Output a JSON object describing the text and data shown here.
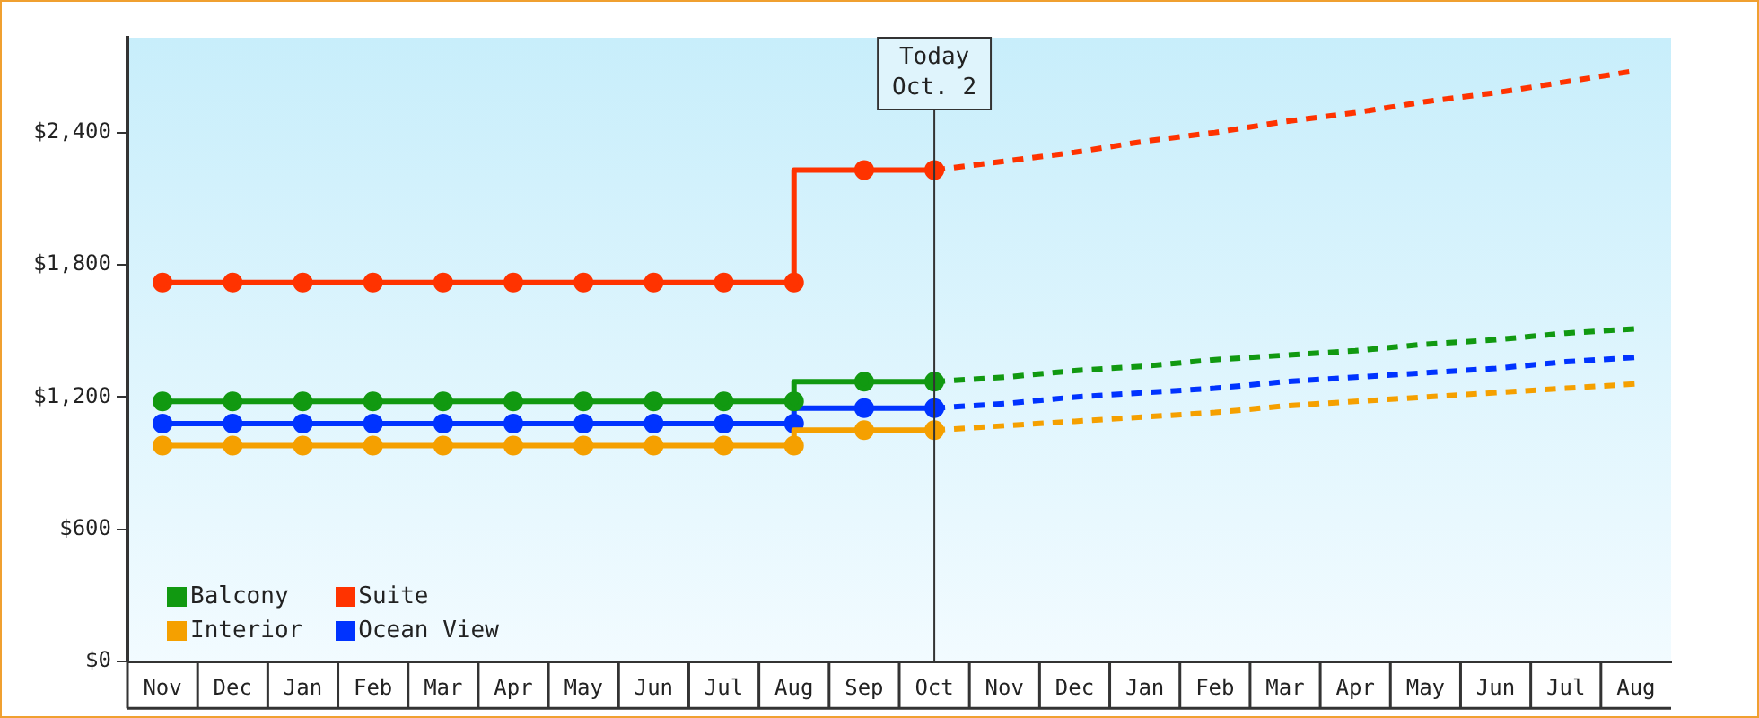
{
  "chart_data": {
    "type": "line",
    "categories": [
      "Nov",
      "Dec",
      "Jan",
      "Feb",
      "Mar",
      "Apr",
      "May",
      "Jun",
      "Jul",
      "Aug",
      "Sep",
      "Oct",
      "Nov",
      "Dec",
      "Jan",
      "Feb",
      "Mar",
      "Apr",
      "May",
      "Jun",
      "Jul",
      "Aug"
    ],
    "ylim": [
      0,
      2830
    ],
    "yticks": [
      {
        "value": 0,
        "label": "$0"
      },
      {
        "value": 600,
        "label": "$600"
      },
      {
        "value": 1200,
        "label": "$1,200"
      },
      {
        "value": 1800,
        "label": "$1,800"
      },
      {
        "value": 2400,
        "label": "$2,400"
      }
    ],
    "grid": false,
    "legend": "bottom left",
    "marker": "circle",
    "line_style": "solid",
    "series": [
      {
        "name": "Balcony",
        "color": "#119911",
        "type": "step",
        "values": [
          1180,
          1180,
          1180,
          1180,
          1180,
          1180,
          1180,
          1180,
          1180,
          1180,
          1270,
          1270,
          null,
          null,
          null,
          null,
          null,
          null,
          null,
          null,
          null,
          null
        ]
      },
      {
        "name": "Suite",
        "color": "#ff3300",
        "type": "step",
        "values": [
          1720,
          1720,
          1720,
          1720,
          1720,
          1720,
          1720,
          1720,
          1720,
          1720,
          2230,
          2230,
          null,
          null,
          null,
          null,
          null,
          null,
          null,
          null,
          null,
          null
        ]
      },
      {
        "name": "Interior",
        "color": "#f5a000",
        "type": "step",
        "values": [
          980,
          980,
          980,
          980,
          980,
          980,
          980,
          980,
          980,
          980,
          1050,
          1050,
          null,
          null,
          null,
          null,
          null,
          null,
          null,
          null,
          null,
          null
        ]
      },
      {
        "name": "Ocean View",
        "color": "#0033ff",
        "type": "step",
        "values": [
          1080,
          1080,
          1080,
          1080,
          1080,
          1080,
          1080,
          1080,
          1080,
          1080,
          1150,
          1150,
          null,
          null,
          null,
          null,
          null,
          null,
          null,
          null,
          null,
          null
        ]
      },
      {
        "color": "#119911",
        "marker": "none",
        "line_style": "dashed",
        "values": [
          null,
          null,
          null,
          null,
          null,
          null,
          null,
          null,
          null,
          null,
          null,
          1270,
          1290,
          1320,
          1340,
          1370,
          1390,
          1410,
          1440,
          1460,
          1490,
          1510
        ]
      },
      {
        "color": "#ff3300",
        "marker": "none",
        "line_style": "dashed",
        "values": [
          null,
          null,
          null,
          null,
          null,
          null,
          null,
          null,
          null,
          null,
          null,
          2230,
          2270,
          2310,
          2360,
          2400,
          2450,
          2490,
          2540,
          2580,
          2630,
          2680
        ]
      },
      {
        "color": "#f5a000",
        "marker": "none",
        "line_style": "dashed",
        "values": [
          null,
          null,
          null,
          null,
          null,
          null,
          null,
          null,
          null,
          null,
          null,
          1050,
          1070,
          1090,
          1110,
          1130,
          1160,
          1180,
          1200,
          1220,
          1240,
          1260
        ]
      },
      {
        "color": "#0033ff",
        "marker": "none",
        "line_style": "dashed",
        "values": [
          null,
          null,
          null,
          null,
          null,
          null,
          null,
          null,
          null,
          null,
          null,
          1150,
          1170,
          1200,
          1220,
          1240,
          1270,
          1290,
          1310,
          1330,
          1360,
          1380
        ]
      }
    ],
    "ref_lines": [
      {
        "axis": "x",
        "value": "Oct",
        "label": "Today\nOct. 2",
        "color": "#333333"
      }
    ]
  }
}
